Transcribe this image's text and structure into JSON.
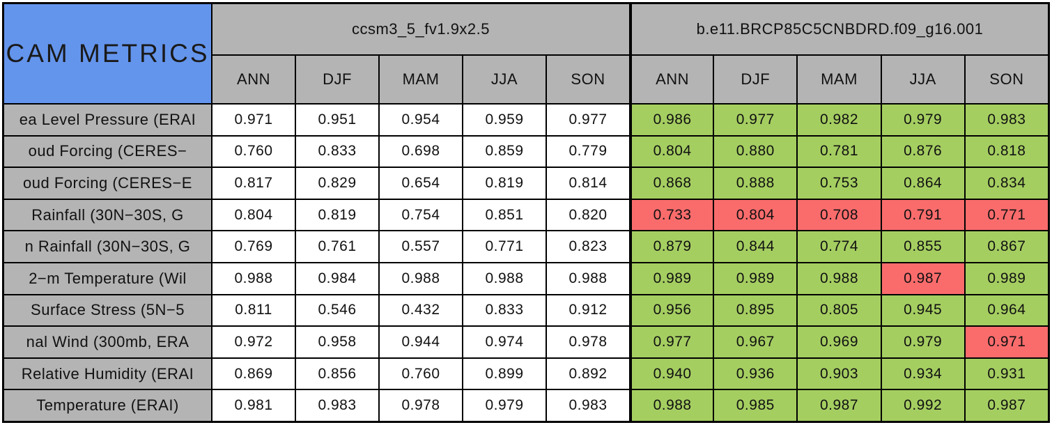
{
  "colors": {
    "green": "#a5ce61",
    "red": "#fa6c6c",
    "blue_header": "#6495ed",
    "gray_header": "#b4b4b4",
    "cell_white": "#ffffff",
    "border_black": "#000000"
  },
  "chart_data": {
    "type": "table",
    "title": "CAM METRICS",
    "groups": [
      "ccsm3_5_fv1.9x2.5",
      "b.e11.BRCP85C5CNBDRD.f09_g16.001"
    ],
    "seasons": [
      "ANN",
      "DJF",
      "MAM",
      "JJA",
      "SON"
    ],
    "rows": [
      {
        "label": "ea Level Pressure (ERAI",
        "m1": [
          "0.971",
          "0.951",
          "0.954",
          "0.959",
          "0.977"
        ],
        "m2": [
          "0.986",
          "0.977",
          "0.982",
          "0.979",
          "0.983"
        ],
        "m2c": [
          "green",
          "green",
          "green",
          "green",
          "green"
        ]
      },
      {
        "label": "oud Forcing (CERES−",
        "m1": [
          "0.760",
          "0.833",
          "0.698",
          "0.859",
          "0.779"
        ],
        "m2": [
          "0.804",
          "0.880",
          "0.781",
          "0.876",
          "0.818"
        ],
        "m2c": [
          "green",
          "green",
          "green",
          "green",
          "green"
        ]
      },
      {
        "label": "oud Forcing (CERES−E",
        "m1": [
          "0.817",
          "0.829",
          "0.654",
          "0.819",
          "0.814"
        ],
        "m2": [
          "0.868",
          "0.888",
          "0.753",
          "0.864",
          "0.834"
        ],
        "m2c": [
          "green",
          "green",
          "green",
          "green",
          "green"
        ]
      },
      {
        "label": "Rainfall (30N−30S, G",
        "m1": [
          "0.804",
          "0.819",
          "0.754",
          "0.851",
          "0.820"
        ],
        "m2": [
          "0.733",
          "0.804",
          "0.708",
          "0.791",
          "0.771"
        ],
        "m2c": [
          "red",
          "red",
          "red",
          "red",
          "red"
        ]
      },
      {
        "label": "n Rainfall (30N−30S, G",
        "m1": [
          "0.769",
          "0.761",
          "0.557",
          "0.771",
          "0.823"
        ],
        "m2": [
          "0.879",
          "0.844",
          "0.774",
          "0.855",
          "0.867"
        ],
        "m2c": [
          "green",
          "green",
          "green",
          "green",
          "green"
        ]
      },
      {
        "label": "2−m Temperature (Wil",
        "m1": [
          "0.988",
          "0.984",
          "0.988",
          "0.988",
          "0.988"
        ],
        "m2": [
          "0.989",
          "0.989",
          "0.988",
          "0.987",
          "0.989"
        ],
        "m2c": [
          "green",
          "green",
          "green",
          "red",
          "green"
        ]
      },
      {
        "label": "Surface Stress (5N−5",
        "m1": [
          "0.811",
          "0.546",
          "0.432",
          "0.833",
          "0.912"
        ],
        "m2": [
          "0.956",
          "0.895",
          "0.805",
          "0.945",
          "0.964"
        ],
        "m2c": [
          "green",
          "green",
          "green",
          "green",
          "green"
        ]
      },
      {
        "label": "nal Wind (300mb, ERA",
        "m1": [
          "0.972",
          "0.958",
          "0.944",
          "0.974",
          "0.978"
        ],
        "m2": [
          "0.977",
          "0.967",
          "0.969",
          "0.979",
          "0.971"
        ],
        "m2c": [
          "green",
          "green",
          "green",
          "green",
          "red"
        ]
      },
      {
        "label": "Relative Humidity (ERAI",
        "m1": [
          "0.869",
          "0.856",
          "0.760",
          "0.899",
          "0.892"
        ],
        "m2": [
          "0.940",
          "0.936",
          "0.903",
          "0.934",
          "0.931"
        ],
        "m2c": [
          "green",
          "green",
          "green",
          "green",
          "green"
        ]
      },
      {
        "label": "Temperature (ERAI)",
        "m1": [
          "0.981",
          "0.983",
          "0.978",
          "0.979",
          "0.983"
        ],
        "m2": [
          "0.988",
          "0.985",
          "0.987",
          "0.992",
          "0.987"
        ],
        "m2c": [
          "green",
          "green",
          "green",
          "green",
          "green"
        ]
      }
    ]
  }
}
